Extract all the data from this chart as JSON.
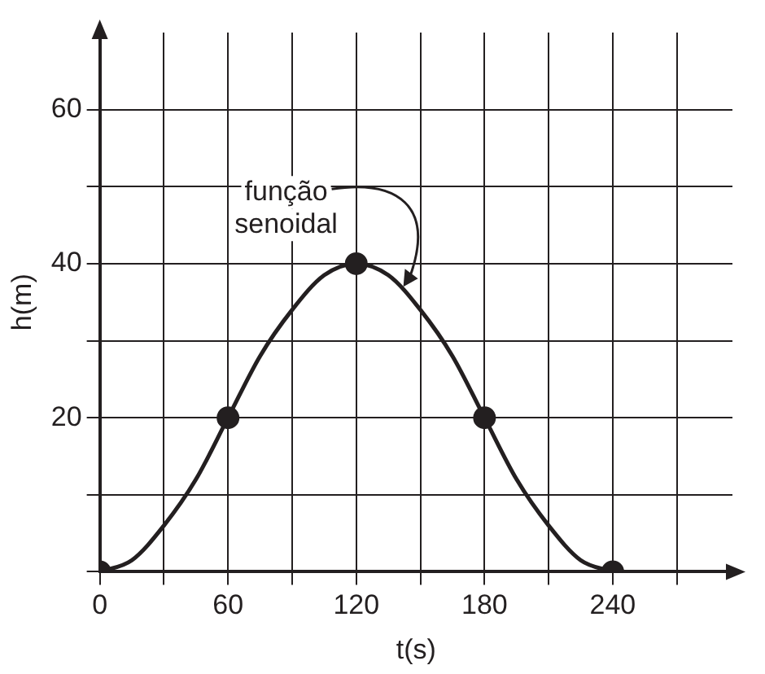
{
  "chart_data": {
    "type": "line",
    "xlabel": "t(s)",
    "ylabel": "h(m)",
    "xlim": [
      0,
      296
    ],
    "ylim": [
      0,
      70
    ],
    "xticks": [
      0,
      {
        "value": 30,
        "label": null
      },
      60,
      {
        "value": 90,
        "label": null
      },
      120,
      {
        "value": 150,
        "label": null
      },
      180,
      {
        "value": 210,
        "label": null
      },
      240,
      {
        "value": 270,
        "label": null
      }
    ],
    "yticks": [
      {
        "value": 0,
        "label": null
      },
      {
        "value": 10,
        "label": null
      },
      20,
      {
        "value": 30,
        "label": null
      },
      40,
      {
        "value": 50,
        "label": null
      },
      60
    ],
    "grid": true,
    "legend": false,
    "series": [
      {
        "color": "#231f20",
        "marker": "none",
        "line_style": "solid",
        "x": [
          0,
          15,
          30,
          45,
          60,
          75,
          90,
          105,
          120,
          135,
          150,
          165,
          180,
          195,
          210,
          225,
          240
        ],
        "values": [
          0,
          1.5,
          6,
          12,
          20,
          28,
          34,
          38.5,
          40,
          38.5,
          34,
          28,
          20,
          12,
          6,
          1.5,
          0
        ]
      },
      {
        "type": "scatter",
        "color": "#231f20",
        "marker": "circle",
        "x": [
          0,
          60,
          120,
          180,
          240
        ],
        "values": [
          0,
          20,
          40,
          20,
          0
        ]
      }
    ],
    "annotations": [
      {
        "text": "função\nsenoidal",
        "x": 142,
        "y": 37
      }
    ]
  }
}
